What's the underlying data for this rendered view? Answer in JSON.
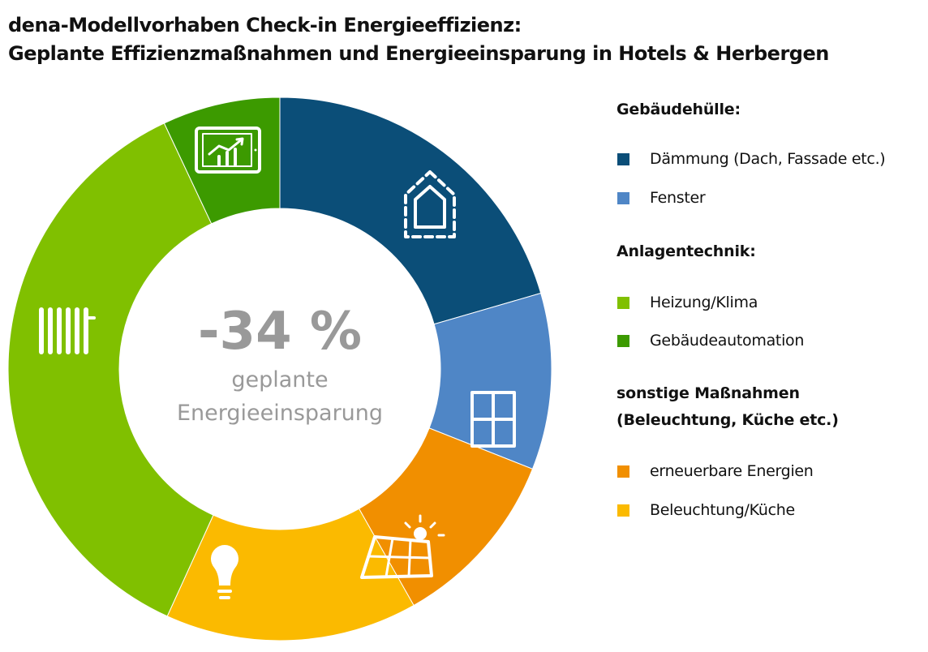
{
  "title": {
    "line1": "dena-Modellvorhaben Check-in Energieeffizienz:",
    "line2": "Geplante Effizienzmaßnahmen und Energieeinsparung in Hotels & Herbergen"
  },
  "chart_data": {
    "type": "pie",
    "subtype": "donut",
    "center_value": "-34 %",
    "center_label_line1": "geplante",
    "center_label_line2": "Energieeinsparung",
    "slices": [
      {
        "label": "Dämmung (Dach, Fassade etc.)",
        "group": "Gebäudehülle",
        "value": 20.5,
        "color": "#0b4e78",
        "icon": "house-outline-icon"
      },
      {
        "label": "Fenster",
        "group": "Gebäudehülle",
        "value": 10.5,
        "color": "#4f86c6",
        "icon": "window-icon"
      },
      {
        "label": "erneuerbare Energien",
        "group": "sonstige Maßnahmen",
        "value": 10.8,
        "color": "#f18f00",
        "icon": "solar-panel-icon"
      },
      {
        "label": "Beleuchtung/Küche",
        "group": "sonstige Maßnahmen",
        "value": 15.0,
        "color": "#fbba00",
        "icon": "light-bulb-icon"
      },
      {
        "label": "Heizung/Klima",
        "group": "Anlagentechnik",
        "value": 36.2,
        "color": "#80c000",
        "icon": "radiator-icon"
      },
      {
        "label": "Gebäudeautomation",
        "group": "Anlagentechnik",
        "value": 7.0,
        "color": "#3c9a00",
        "icon": "tablet-chart-icon"
      }
    ],
    "legend_position": "right"
  },
  "legend": {
    "groups": [
      {
        "title": "Gebäudehülle:",
        "items": [
          {
            "label": "Dämmung (Dach, Fassade etc.)",
            "color": "#0b4e78"
          },
          {
            "label": "Fenster",
            "color": "#4f86c6"
          }
        ]
      },
      {
        "title": "Anlagentechnik:",
        "items": [
          {
            "label": "Heizung/Klima",
            "color": "#80c000"
          },
          {
            "label": "Gebäudeautomation",
            "color": "#3c9a00"
          }
        ]
      },
      {
        "title": "sonstige Maßnahmen\n(Beleuchtung, Küche etc.)",
        "title_line1": "sonstige Maßnahmen",
        "title_line2": "(Beleuchtung, Küche etc.)",
        "items": [
          {
            "label": "erneuerbare Energien",
            "color": "#f18f00"
          },
          {
            "label": "Beleuchtung/Küche",
            "color": "#fbba00"
          }
        ]
      }
    ]
  }
}
